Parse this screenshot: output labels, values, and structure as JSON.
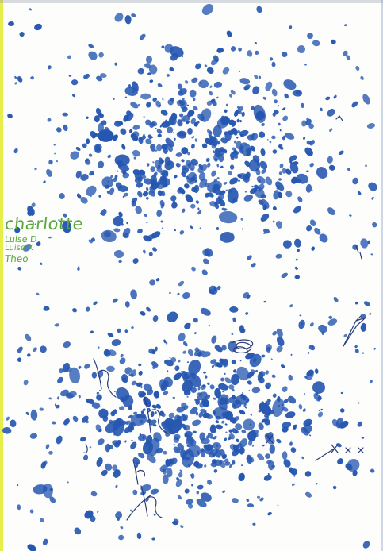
{
  "artwork": {
    "ink_color": "#2657b0",
    "pen_color": "#2a3d7a",
    "name_color": "#5aa83c",
    "left_border_color": "#e6ee4a",
    "right_border_color": "#cfd6e6",
    "top_border_color": "#8f99a8"
  },
  "names": [
    {
      "text": "charlotte"
    },
    {
      "text": "Luise D"
    },
    {
      "text": "Luise K"
    },
    {
      "text": "Theo"
    }
  ],
  "marks": {
    "cross_label_1": "x",
    "cross_label_2": "x x x"
  }
}
